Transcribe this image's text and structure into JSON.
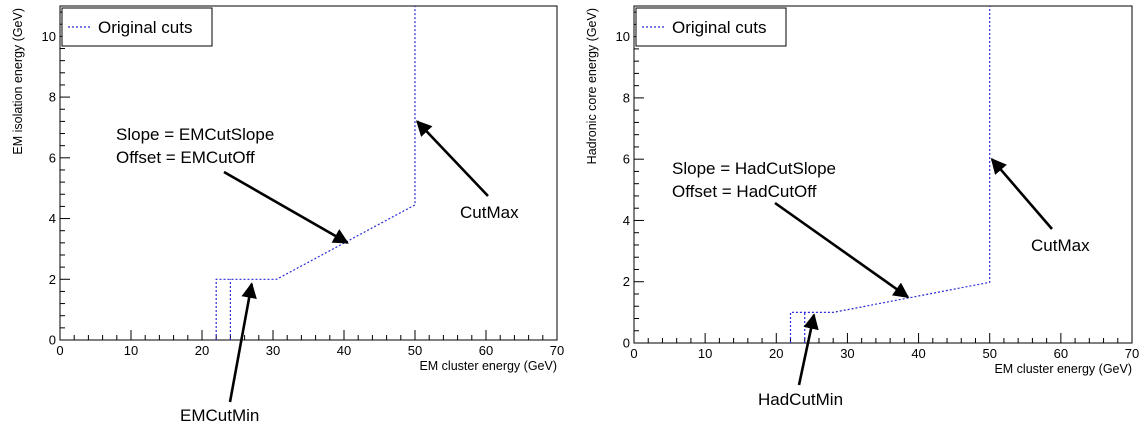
{
  "chart_data": [
    {
      "type": "line",
      "xlabel": "EM cluster energy (GeV)",
      "ylabel": "EM isolation energy (GeV)",
      "xlim": [
        0,
        70
      ],
      "ylim": [
        0,
        11
      ],
      "x_ticks": [
        "0",
        "10",
        "20",
        "30",
        "40",
        "50",
        "60",
        "70"
      ],
      "y_ticks": [
        "0",
        "2",
        "4",
        "6",
        "8",
        "10"
      ],
      "grid": false,
      "legend": {
        "position": "top-left",
        "entries": [
          "Original cuts"
        ]
      },
      "series": [
        {
          "name": "Original cuts",
          "color": "#2b2bd8",
          "style": "dotted",
          "polylines": [
            [
              [
                22,
                0
              ],
              [
                22,
                2
              ],
              [
                30.5,
                2
              ],
              [
                50,
                4.45
              ],
              [
                50,
                11
              ]
            ],
            [
              [
                24,
                0
              ],
              [
                24,
                2
              ]
            ]
          ]
        }
      ],
      "annotations": [
        {
          "lines": [
            "Slope = EMCutSlope",
            "Offset = EMCutOff"
          ],
          "arrow_to": [
            40.5,
            3.2
          ]
        },
        {
          "lines": [
            "CutMax"
          ],
          "arrow_to": [
            50.3,
            7.2
          ]
        },
        {
          "lines": [
            "EMCutMin"
          ],
          "arrow_to": [
            27,
            1.85
          ]
        }
      ]
    },
    {
      "type": "line",
      "xlabel": "EM cluster energy (GeV)",
      "ylabel": "Hadronic core energy (GeV)",
      "xlim": [
        0,
        70
      ],
      "ylim": [
        0,
        11
      ],
      "x_ticks": [
        "0",
        "10",
        "20",
        "30",
        "40",
        "50",
        "60",
        "70"
      ],
      "y_ticks": [
        "0",
        "2",
        "4",
        "6",
        "8",
        "10"
      ],
      "grid": false,
      "legend": {
        "position": "top-left",
        "entries": [
          "Original cuts"
        ]
      },
      "series": [
        {
          "name": "Original cuts",
          "color": "#2b2bd8",
          "style": "dotted",
          "polylines": [
            [
              [
                22,
                0
              ],
              [
                22,
                1
              ],
              [
                28,
                1
              ],
              [
                50,
                1.98
              ],
              [
                50,
                11
              ]
            ],
            [
              [
                24,
                0
              ],
              [
                24,
                1
              ]
            ]
          ]
        }
      ],
      "annotations": [
        {
          "lines": [
            "Slope = HadCutSlope",
            "Offset = HadCutOff"
          ],
          "arrow_to": [
            38.5,
            1.5
          ]
        },
        {
          "lines": [
            "CutMax"
          ],
          "arrow_to": [
            50.3,
            6.0
          ]
        },
        {
          "lines": [
            "HadCutMin"
          ],
          "arrow_to": [
            25.3,
            0.92
          ]
        }
      ]
    }
  ]
}
